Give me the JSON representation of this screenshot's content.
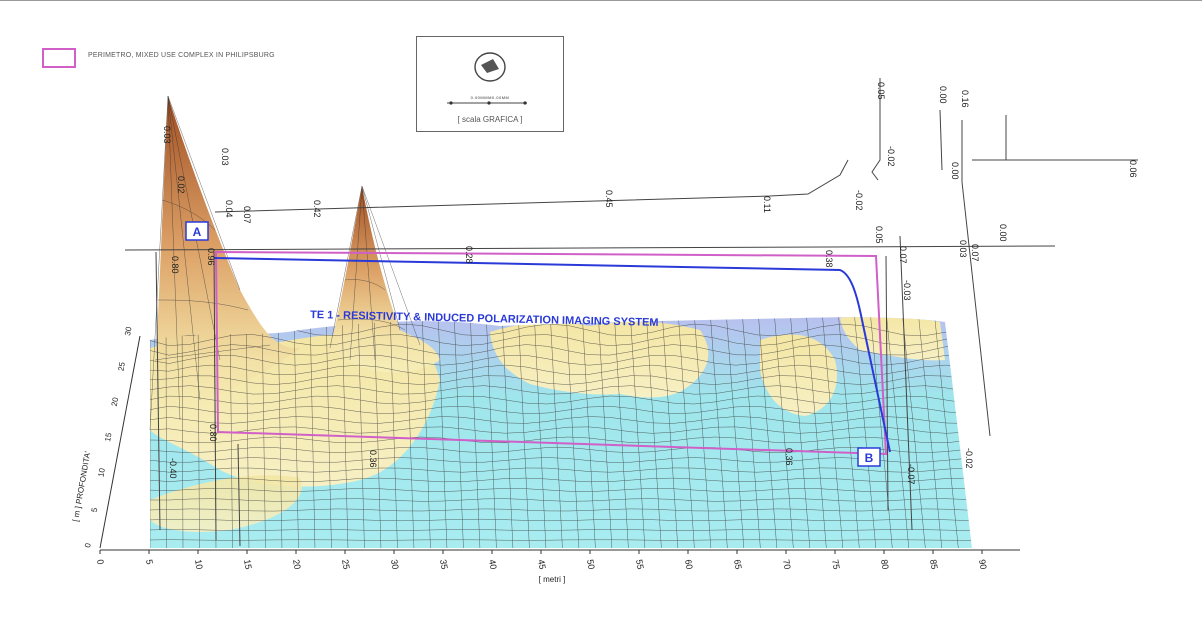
{
  "legend": {
    "label": "PERIMETRO, MIXED USE COMPLEX IN PHILIPSBURG",
    "color": "#d060c8"
  },
  "scale": {
    "label": "[ scala GRAFICA ]",
    "top_text": "0.00MMM0.00MM"
  },
  "title": "TE 1 - RESISTIVITY & INDUCED POLARIZATION IMAGING SYSTEM",
  "x_axis": {
    "label": "[ metri ]",
    "ticks": [
      "0",
      "5",
      "10",
      "15",
      "20",
      "25",
      "30",
      "35",
      "40",
      "45",
      "50",
      "55",
      "60",
      "65",
      "70",
      "75",
      "80",
      "85",
      "90"
    ]
  },
  "z_axis": {
    "label": "[ m ] PROFONDITA'",
    "ticks": [
      "0",
      "5",
      "10",
      "15",
      "20",
      "25",
      "30"
    ]
  },
  "markers": [
    {
      "id": "A",
      "label": "A"
    },
    {
      "id": "B",
      "label": "B"
    }
  ],
  "elevation_labels": [
    {
      "id": "l1",
      "text": "0.03"
    },
    {
      "id": "l2",
      "text": "0.02"
    },
    {
      "id": "l3",
      "text": "0.03"
    },
    {
      "id": "l4",
      "text": "0.04"
    },
    {
      "id": "l5",
      "text": "0.07"
    },
    {
      "id": "l6",
      "text": "0.42"
    },
    {
      "id": "l7",
      "text": "0.45"
    },
    {
      "id": "l8",
      "text": "0.11"
    },
    {
      "id": "l9",
      "text": "-0.02"
    },
    {
      "id": "l10",
      "text": "-0.02"
    },
    {
      "id": "l11",
      "text": "0.05"
    },
    {
      "id": "l12",
      "text": "0.00"
    },
    {
      "id": "l13",
      "text": "0.16"
    },
    {
      "id": "l14",
      "text": "0.00"
    },
    {
      "id": "l15",
      "text": "0.06"
    },
    {
      "id": "l16",
      "text": "0.00"
    },
    {
      "id": "l17",
      "text": "0.28"
    },
    {
      "id": "l18",
      "text": "0.38"
    },
    {
      "id": "l19",
      "text": "0.07"
    },
    {
      "id": "l20",
      "text": "-0.03"
    },
    {
      "id": "l21",
      "text": "0.07"
    },
    {
      "id": "l22",
      "text": "0.05"
    },
    {
      "id": "l23",
      "text": "0.03"
    },
    {
      "id": "l24",
      "text": "0.96"
    },
    {
      "id": "l25",
      "text": "0.80"
    },
    {
      "id": "l26",
      "text": "0.80"
    },
    {
      "id": "l27",
      "text": "-0.40"
    },
    {
      "id": "l28",
      "text": "0.36"
    },
    {
      "id": "l29",
      "text": "0.36"
    },
    {
      "id": "l30",
      "text": "-0.07"
    },
    {
      "id": "l31",
      "text": "-0.02"
    }
  ],
  "colors": {
    "surface_high": "#a85a2a",
    "surface_mid": "#e8b070",
    "surface_yellow": "#f5ecb0",
    "surface_blue": "#aeb8ec",
    "surface_cyan": "#9fe6ec",
    "trace_blue": "#2a3ad8",
    "perimeter_pink": "#d060c8",
    "title_blue": "#2a3ad8"
  }
}
